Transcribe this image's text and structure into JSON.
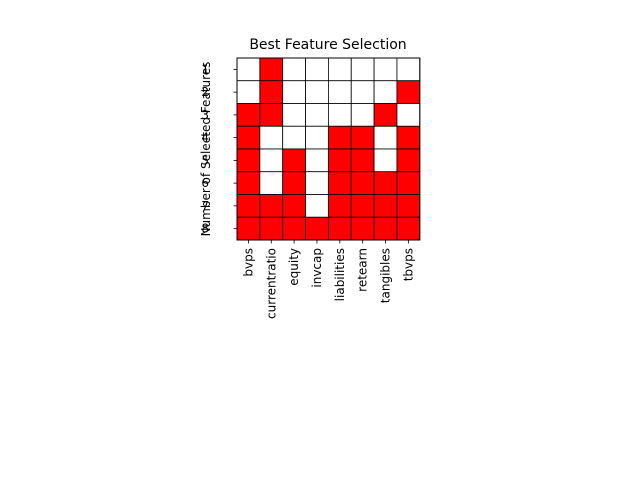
{
  "chart_data": {
    "type": "heatmap",
    "title": "Best Feature Selection",
    "xlabel": "",
    "ylabel": "Number of Selected Features",
    "x_categories": [
      "bvps",
      "currentratio",
      "equity",
      "invcap",
      "liabilities",
      "retearn",
      "tangibles",
      "tbvps"
    ],
    "y_categories": [
      "1",
      "2",
      "3",
      "4",
      "5",
      "6",
      "7",
      "8"
    ],
    "values": [
      [
        0,
        1,
        0,
        0,
        0,
        0,
        0,
        0
      ],
      [
        0,
        1,
        0,
        0,
        0,
        0,
        0,
        1
      ],
      [
        1,
        1,
        0,
        0,
        0,
        0,
        1,
        0
      ],
      [
        1,
        0,
        0,
        0,
        1,
        1,
        0,
        1
      ],
      [
        1,
        0,
        1,
        0,
        1,
        1,
        0,
        1
      ],
      [
        1,
        0,
        1,
        0,
        1,
        1,
        1,
        1
      ],
      [
        1,
        1,
        1,
        0,
        1,
        1,
        1,
        1
      ],
      [
        1,
        1,
        1,
        1,
        1,
        1,
        1,
        1
      ]
    ],
    "selected_color": "#ff0000",
    "unselected_color": "#ffffff",
    "grid": true,
    "legend": "none"
  }
}
